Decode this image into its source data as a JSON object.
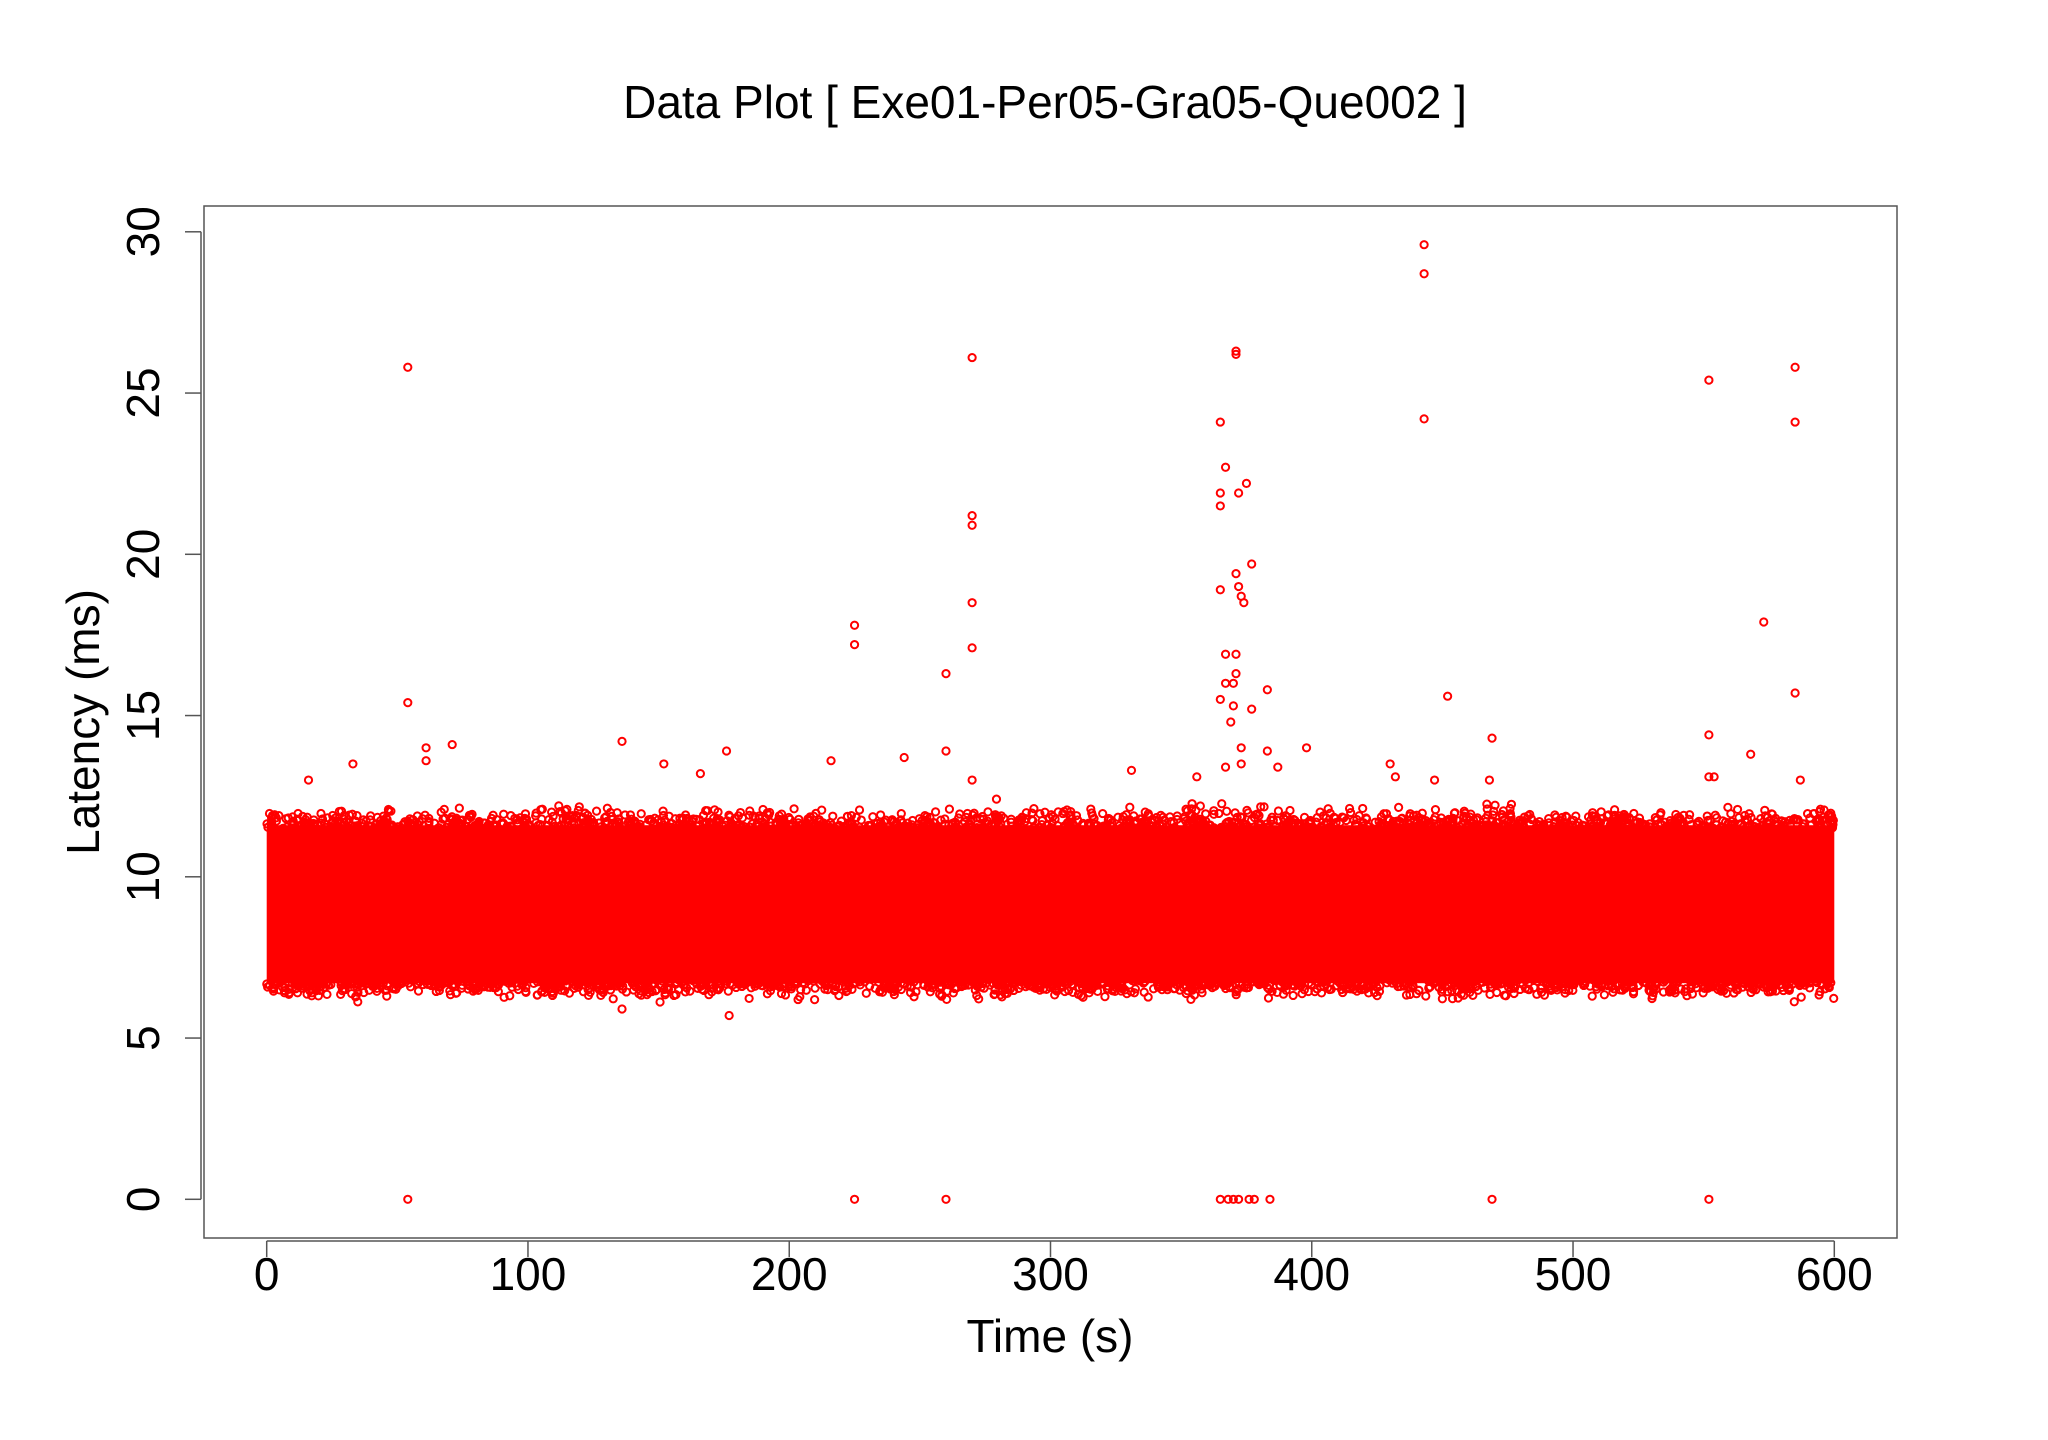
{
  "chart_data": {
    "type": "scatter",
    "title": "Data Plot [ Exe01-Per05-Gra05-Que002 ]",
    "xlabel": "Time (s)",
    "ylabel": "Latency (ms)",
    "xlim": [
      -24,
      624
    ],
    "ylim": [
      -1.2,
      30.8
    ],
    "xticks": [
      0,
      100,
      200,
      300,
      400,
      500,
      600
    ],
    "yticks": [
      0,
      5,
      10,
      15,
      20,
      25,
      30
    ],
    "grid": false,
    "legend": "none",
    "series": [
      {
        "color": "#ff0000",
        "marker": "open-circle",
        "dense_band": {
          "x_range": [
            0,
            600
          ],
          "y_range": [
            6.3,
            12.0
          ],
          "description_values": {
            "y_center": 9.1
          }
        },
        "points": [
          [
            54,
            25.8
          ],
          [
            54,
            15.4
          ],
          [
            54,
            0
          ],
          [
            61,
            14.0
          ],
          [
            61,
            13.6
          ],
          [
            71,
            14.1
          ],
          [
            33,
            13.5
          ],
          [
            16,
            13.0
          ],
          [
            136,
            14.2
          ],
          [
            152,
            13.5
          ],
          [
            166,
            13.2
          ],
          [
            176,
            13.9
          ],
          [
            177,
            5.7
          ],
          [
            136,
            5.9
          ],
          [
            216,
            13.6
          ],
          [
            225,
            17.8
          ],
          [
            225,
            17.2
          ],
          [
            225,
            0
          ],
          [
            244,
            13.7
          ],
          [
            260,
            16.3
          ],
          [
            260,
            13.9
          ],
          [
            260,
            0
          ],
          [
            270,
            26.1
          ],
          [
            270,
            21.2
          ],
          [
            270,
            20.9
          ],
          [
            270,
            18.5
          ],
          [
            270,
            17.1
          ],
          [
            270,
            13.0
          ],
          [
            331,
            13.3
          ],
          [
            356,
            13.1
          ],
          [
            365,
            24.1
          ],
          [
            365,
            21.9
          ],
          [
            365,
            21.5
          ],
          [
            365,
            18.9
          ],
          [
            365,
            15.5
          ],
          [
            367,
            22.7
          ],
          [
            367,
            16.9
          ],
          [
            367,
            16.0
          ],
          [
            367,
            13.4
          ],
          [
            369,
            14.8
          ],
          [
            370,
            15.3
          ],
          [
            370,
            16.0
          ],
          [
            371,
            26.3
          ],
          [
            371,
            26.2
          ],
          [
            371,
            19.4
          ],
          [
            371,
            16.9
          ],
          [
            371,
            16.3
          ],
          [
            372,
            21.9
          ],
          [
            372,
            19.0
          ],
          [
            373,
            18.7
          ],
          [
            373,
            14.0
          ],
          [
            373,
            13.5
          ],
          [
            374,
            18.5
          ],
          [
            375,
            22.2
          ],
          [
            377,
            19.7
          ],
          [
            377,
            15.2
          ],
          [
            383,
            15.8
          ],
          [
            383,
            13.9
          ],
          [
            387,
            13.4
          ],
          [
            398,
            14.0
          ],
          [
            365,
            0
          ],
          [
            368,
            0
          ],
          [
            370,
            0
          ],
          [
            372,
            0
          ],
          [
            376,
            0
          ],
          [
            378,
            0
          ],
          [
            384,
            0
          ],
          [
            430,
            13.5
          ],
          [
            432,
            13.1
          ],
          [
            443,
            29.6
          ],
          [
            443,
            28.7
          ],
          [
            443,
            24.2
          ],
          [
            447,
            13.0
          ],
          [
            452,
            15.6
          ],
          [
            468,
            13.0
          ],
          [
            469,
            14.3
          ],
          [
            469,
            0
          ],
          [
            552,
            25.4
          ],
          [
            552,
            14.4
          ],
          [
            552,
            13.1
          ],
          [
            554,
            13.1
          ],
          [
            552,
            0
          ],
          [
            568,
            13.8
          ],
          [
            573,
            17.9
          ],
          [
            585,
            25.8
          ],
          [
            585,
            24.1
          ],
          [
            585,
            15.7
          ],
          [
            587,
            13.0
          ]
        ]
      }
    ]
  }
}
